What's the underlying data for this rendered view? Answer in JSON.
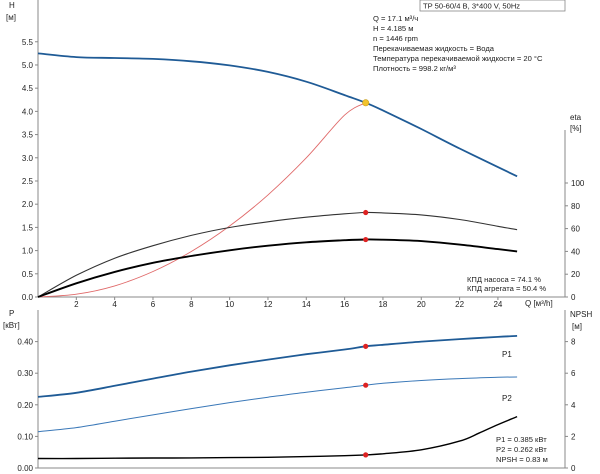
{
  "header": {
    "model": "TP 50-60/4 B, 3*400 V, 50Hz",
    "op_q": "Q = 17.1 м³/ч",
    "op_h": "H = 4.185 м",
    "op_n": "n = 1446 rpm",
    "liquid": "Перекачиваемая жидкость = Вода",
    "temp": "Температура перекачиваемой жидкости = 20 °C",
    "density": "Плотность = 998.2 кг/м³"
  },
  "efficiency_box": {
    "pump": "КПД насоса = 74.1 %",
    "unit": "КПД агрегата = 50.4 %"
  },
  "power_box": {
    "p1": "P1 = 0.385 кВт",
    "p2": "P2 = 0.262 кВт",
    "npsh": "NPSH = 0.83 м"
  },
  "colors": {
    "head": "#1f5b96",
    "system": "#e06a6a",
    "eta_pump": "#333333",
    "eta_unit": "#000000",
    "p1": "#1f5b96",
    "p2": "#3a78b8",
    "npsh": "#000000",
    "op_point_head": "#f2c32c",
    "op_point": "#dd2222",
    "axis": "#888888"
  },
  "chart_data": [
    {
      "type": "line",
      "title": "",
      "ylabel_left": "H",
      "ylabel_left_unit": "[м]",
      "ylabel_right": "eta",
      "ylabel_right_unit": "[%]",
      "xlabel": "Q [м³/h]",
      "xlim": [
        0,
        27.5
      ],
      "ylim_left": [
        0,
        6.4
      ],
      "ylim_right": [
        0,
        100
      ],
      "x_ticks": [
        2,
        4,
        6,
        8,
        10,
        12,
        14,
        16,
        18,
        20,
        22,
        24
      ],
      "y_ticks_left": [
        "0.0",
        "0.5",
        "1.0",
        "1.5",
        "2.0",
        "2.5",
        "3.0",
        "3.5",
        "4.0",
        "4.5",
        "5.0",
        "5.5"
      ],
      "y_ticks_right": [
        0,
        20,
        40,
        60,
        80,
        100
      ],
      "series": [
        {
          "key": "head",
          "axis": "left",
          "x": [
            0,
            2,
            4,
            6,
            8,
            10,
            12,
            14,
            16,
            17.1,
            18,
            20,
            22,
            24,
            25
          ],
          "y": [
            5.25,
            5.17,
            5.15,
            5.13,
            5.08,
            4.99,
            4.85,
            4.64,
            4.35,
            4.185,
            4.02,
            3.62,
            3.2,
            2.8,
            2.6
          ]
        },
        {
          "key": "system",
          "axis": "left",
          "x": [
            0,
            2,
            4,
            6,
            8,
            10,
            12,
            14,
            16,
            17.1
          ],
          "y": [
            0,
            0.06,
            0.24,
            0.55,
            0.98,
            1.53,
            2.2,
            3.0,
            3.92,
            4.185
          ]
        },
        {
          "key": "eta_pump",
          "axis": "right",
          "x": [
            0,
            2,
            4,
            6,
            8,
            10,
            12,
            14,
            16,
            17.1,
            18,
            20,
            22,
            24,
            25
          ],
          "y": [
            0,
            19,
            34,
            45,
            54,
            61,
            66,
            70,
            73,
            74.1,
            73.8,
            72,
            68,
            62,
            59
          ]
        },
        {
          "key": "eta_unit",
          "axis": "right",
          "x": [
            0,
            2,
            4,
            6,
            8,
            10,
            12,
            14,
            16,
            17.1,
            18,
            20,
            22,
            24,
            25
          ],
          "y": [
            0,
            12,
            22,
            30,
            36,
            41,
            45,
            48,
            49.8,
            50.4,
            50.3,
            49,
            46,
            42,
            40
          ]
        }
      ],
      "operating_point": {
        "q": 17.1,
        "h": 4.185,
        "eta_pump": 74.1,
        "eta_unit": 50.4
      }
    },
    {
      "type": "line",
      "title": "",
      "ylabel_left": "P",
      "ylabel_left_unit": "[кВт]",
      "ylabel_right": "NPSH",
      "ylabel_right_unit": "[м]",
      "xlim": [
        0,
        27.5
      ],
      "ylim_left": [
        0,
        0.5
      ],
      "ylim_right": [
        0,
        10
      ],
      "y_ticks_left": [
        "0.00",
        "0.10",
        "0.20",
        "0.30",
        "0.40"
      ],
      "y_ticks_right": [
        0,
        2,
        4,
        6,
        8
      ],
      "series": [
        {
          "key": "p1",
          "name": "P1",
          "axis": "left",
          "x": [
            0,
            2,
            4,
            6,
            8,
            10,
            12,
            14,
            16,
            17.1,
            18,
            20,
            22,
            24,
            25
          ],
          "y": [
            0.225,
            0.238,
            0.26,
            0.283,
            0.305,
            0.325,
            0.343,
            0.36,
            0.375,
            0.385,
            0.39,
            0.4,
            0.408,
            0.415,
            0.418
          ]
        },
        {
          "key": "p2",
          "name": "P2",
          "axis": "left",
          "x": [
            0,
            2,
            4,
            6,
            8,
            10,
            12,
            14,
            16,
            17.1,
            18,
            20,
            22,
            24,
            25
          ],
          "y": [
            0.115,
            0.128,
            0.148,
            0.168,
            0.188,
            0.207,
            0.224,
            0.24,
            0.254,
            0.262,
            0.268,
            0.277,
            0.283,
            0.287,
            0.288
          ]
        },
        {
          "key": "npsh",
          "axis": "right",
          "x": [
            0,
            2,
            4,
            6,
            8,
            10,
            12,
            14,
            16,
            17.1,
            18,
            20,
            22,
            23,
            24,
            25
          ],
          "y": [
            0.6,
            0.6,
            0.62,
            0.63,
            0.64,
            0.66,
            0.68,
            0.72,
            0.78,
            0.83,
            0.9,
            1.15,
            1.7,
            2.2,
            2.75,
            3.25
          ]
        }
      ],
      "operating_point": {
        "q": 17.1,
        "p1": 0.385,
        "p2": 0.262,
        "npsh": 0.83
      }
    }
  ]
}
